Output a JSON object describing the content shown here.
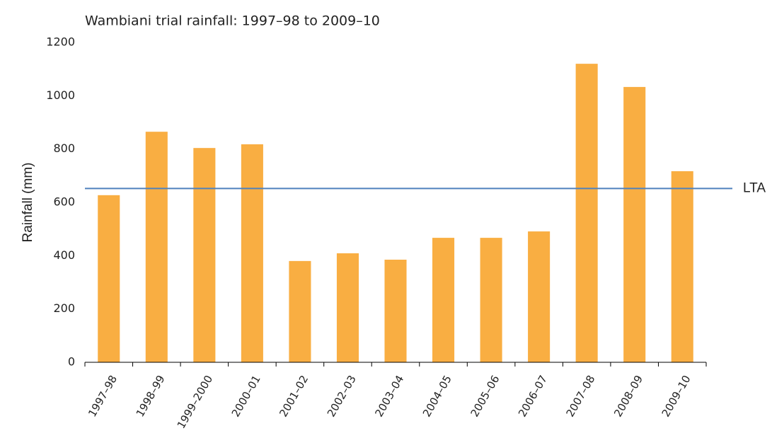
{
  "chart_data": {
    "type": "bar",
    "title": "Wambiani trial rainfall: 1997–98 to 2009–10",
    "y_label": "Rainfall (mm)",
    "categories": [
      "1997–98",
      "1998–99",
      "1999–2000",
      "2000–01",
      "2001–02",
      "2002–03",
      "2003–04",
      "2004–05",
      "2005–06",
      "2006–07",
      "2007–08",
      "2008–09",
      "2009–10"
    ],
    "values": [
      627,
      865,
      804,
      818,
      380,
      409,
      385,
      467,
      467,
      491,
      1120,
      1033,
      717
    ],
    "color": "#f9ae42",
    "ylim": [
      0,
      1200
    ],
    "yticks": [
      0,
      200,
      400,
      600,
      800,
      1000,
      1200
    ],
    "grid": false,
    "reference_line": {
      "label": "LTA",
      "value": 652,
      "color": "#4f81bd"
    }
  }
}
